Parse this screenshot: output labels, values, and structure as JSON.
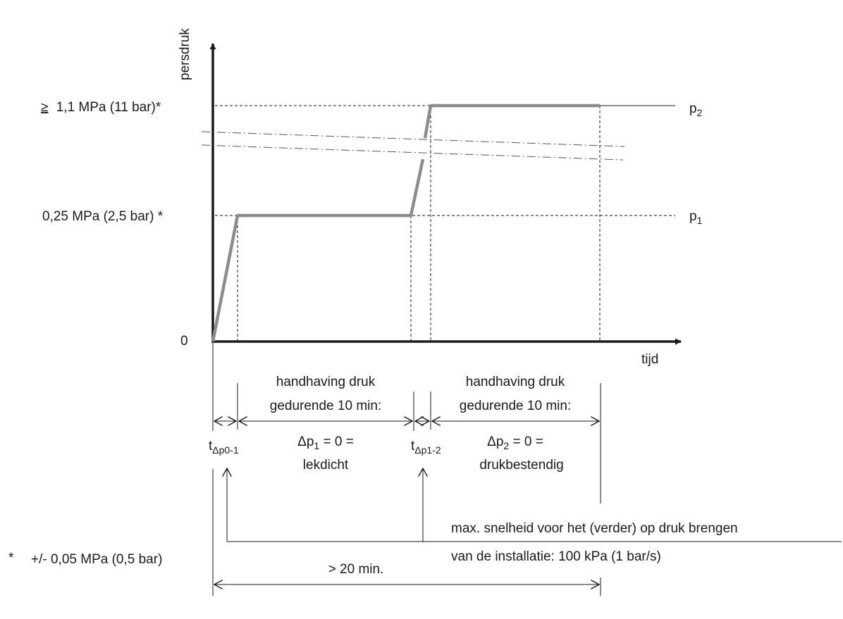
{
  "axes": {
    "y_label": "persdruk",
    "x_label": "tijd",
    "origin_label": "0"
  },
  "levels": {
    "high": {
      "prefix": "≥",
      "label": "1,1 MPa  (11 bar)*",
      "tag": "p",
      "tag_sub": "2"
    },
    "low": {
      "label": "0,25 MPa  (2,5 bar) *",
      "tag": "p",
      "tag_sub": "1"
    }
  },
  "phases": {
    "first": {
      "line1": "handhaving druk",
      "line2": "gedurende  10 min:",
      "result_sym": "Δp",
      "result_sub": "1",
      "result_rest": " = 0 =",
      "result_line2": "lekdicht"
    },
    "second": {
      "line1": "handhaving druk",
      "line2": "gedurende 10 min:",
      "result_sym": "Δp",
      "result_sub": "2",
      "result_rest": " = 0 =",
      "result_line2": "drukbestendig"
    }
  },
  "ramps": {
    "first": {
      "sym": "t",
      "sub": "Δp0-1"
    },
    "second": {
      "sym": "t",
      "sub": "Δp1-2"
    }
  },
  "notes": {
    "speed_line1": "max. snelheid voor het (verder) op druk brengen",
    "speed_line2": "van de installatie:  100 kPa (1 bar/s)",
    "total": "> 20 min.",
    "footnote_mark": "*",
    "footnote": "+/- 0,05 MPa (0,5 bar)"
  },
  "colors": {
    "curve": "#8c8c8c",
    "ink": "#1a1a1a"
  }
}
